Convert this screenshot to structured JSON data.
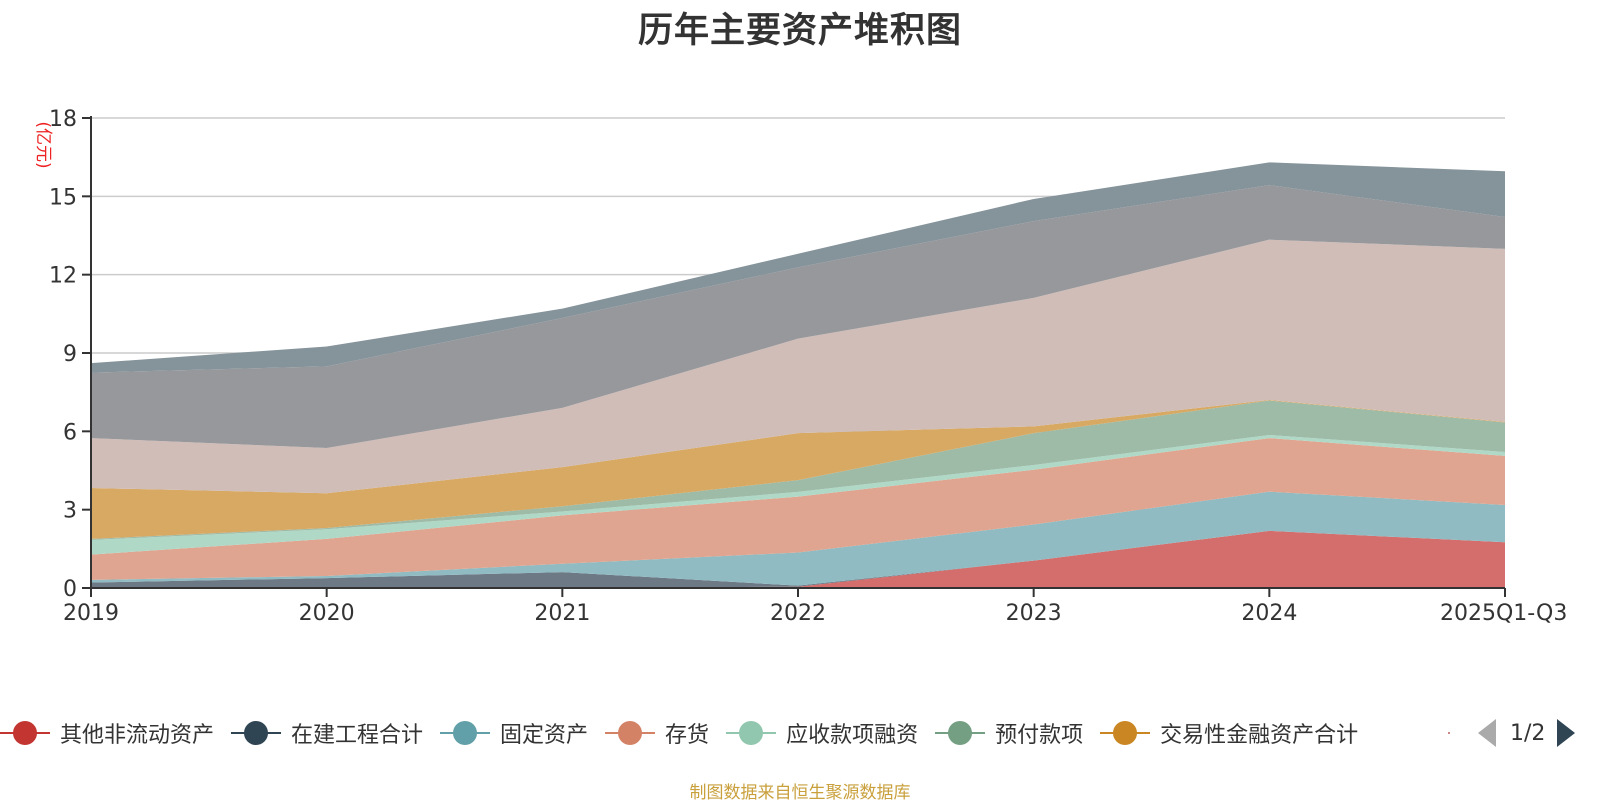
{
  "title": "历年主要资产堆积图",
  "source_note": "制图数据来自恒生聚源数据库",
  "pager": {
    "text": "1/2"
  },
  "chart_data": {
    "type": "area",
    "stacked": true,
    "title": "历年主要资产堆积图",
    "xlabel": "",
    "ylabel": "(亿元)",
    "ylim": [
      0,
      18
    ],
    "yticks": [
      0,
      3,
      6,
      9,
      12,
      15,
      18
    ],
    "grid": true,
    "legend_position": "bottom",
    "categories": [
      "2019",
      "2020",
      "2021",
      "2022",
      "2023",
      "2024",
      "2025Q1-Q3"
    ],
    "series": [
      {
        "name": "其他非流动资产",
        "color": "#c23531",
        "fill": "#d46e6c",
        "in_legend": true,
        "values": [
          0.0,
          0.0,
          0.0,
          0.05,
          1.05,
          2.19,
          1.75
        ]
      },
      {
        "name": "在建工程合计",
        "color": "#2f4554",
        "fill": "#6d7a86",
        "in_legend": true,
        "values": [
          0.21,
          0.38,
          0.61,
          0.04,
          0.0,
          0.0,
          0.0
        ]
      },
      {
        "name": "固定资产",
        "color": "#61a0a8",
        "fill": "#90bbc2",
        "in_legend": true,
        "values": [
          0.1,
          0.08,
          0.32,
          1.27,
          1.38,
          1.5,
          1.43
        ]
      },
      {
        "name": "存货",
        "color": "#d48265",
        "fill": "#e0a590",
        "in_legend": true,
        "values": [
          0.97,
          1.42,
          1.85,
          2.14,
          2.1,
          2.05,
          1.88
        ]
      },
      {
        "name": "应收款项融资",
        "color": "#91c7ae",
        "fill": "#b0d8c6",
        "in_legend": true,
        "values": [
          0.56,
          0.37,
          0.15,
          0.18,
          0.18,
          0.12,
          0.15
        ]
      },
      {
        "name": "预付款项",
        "color": "#749f83",
        "fill": "#9ebba8",
        "in_legend": true,
        "values": [
          0.04,
          0.05,
          0.2,
          0.45,
          1.22,
          1.32,
          1.13
        ]
      },
      {
        "name": "交易性金融资产合计",
        "color": "#ca8622",
        "fill": "#d8a962",
        "in_legend": true,
        "values": [
          1.95,
          1.33,
          1.5,
          1.8,
          0.26,
          0.02,
          0.02
        ]
      },
      {
        "name": "",
        "color": "#bda29a",
        "fill": "#d0bdb8",
        "in_legend": false,
        "values": [
          1.91,
          1.73,
          2.27,
          3.62,
          4.92,
          6.14,
          6.63
        ]
      },
      {
        "name": "",
        "color": "#6e7074",
        "fill": "#97989c",
        "in_legend": false,
        "values": [
          2.51,
          3.13,
          3.44,
          2.73,
          2.94,
          2.09,
          1.22
        ]
      },
      {
        "name": "",
        "color": "#546570",
        "fill": "#85939a",
        "in_legend": false,
        "values": [
          0.36,
          0.76,
          0.36,
          0.52,
          0.85,
          0.87,
          1.75
        ]
      }
    ]
  }
}
